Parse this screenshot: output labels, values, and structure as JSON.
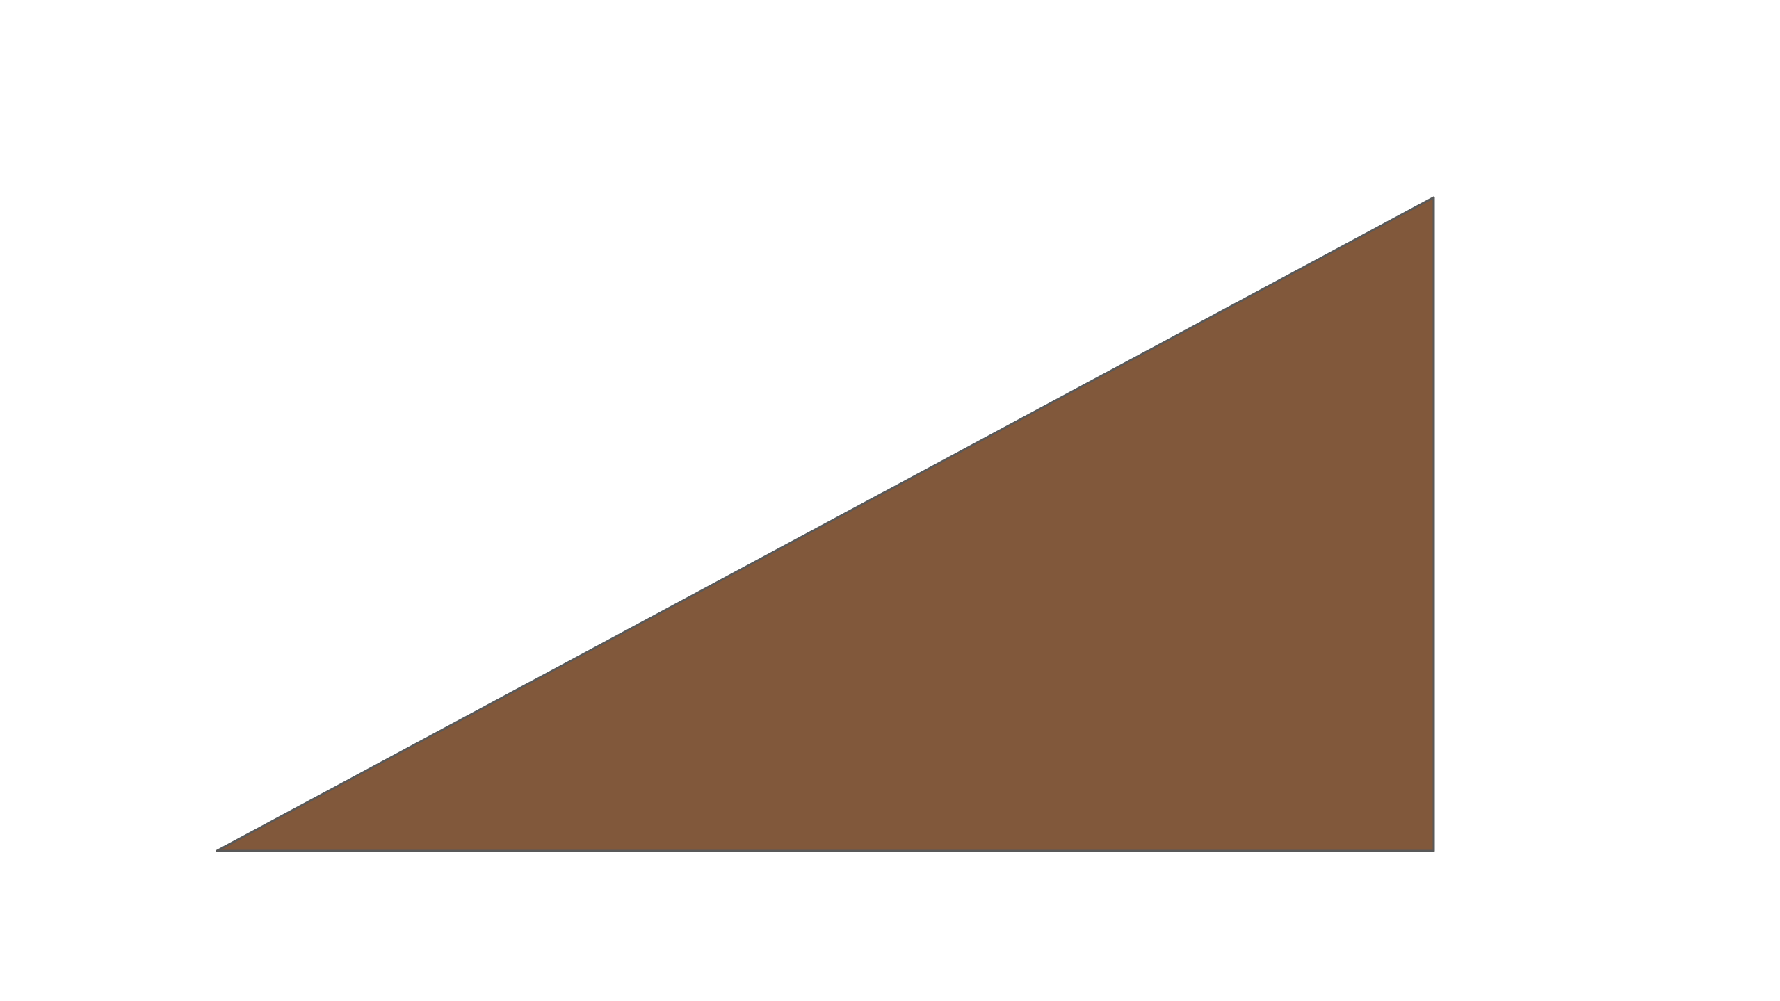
{
  "figure": {
    "shape": "right-triangle",
    "fill": "#81583b",
    "outline": "#595959",
    "background": "#ffffff"
  }
}
